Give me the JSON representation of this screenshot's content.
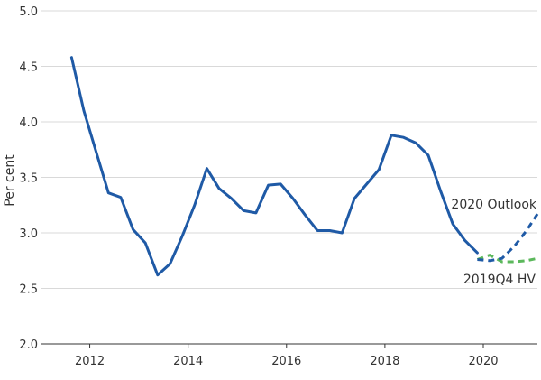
{
  "chart_data": {
    "type": "line",
    "title": "",
    "xlabel": "",
    "ylabel": "Per cent",
    "xlim": [
      2011.0,
      2021.1
    ],
    "ylim": [
      2.0,
      5.0
    ],
    "x_ticks": [
      2012,
      2014,
      2016,
      2018,
      2020
    ],
    "y_ticks": [
      "2.0",
      "2.5",
      "3.0",
      "3.5",
      "4.0",
      "4.5",
      "5.0"
    ],
    "grid": "horizontal",
    "legend": "none",
    "series": [
      {
        "name": "",
        "color": "#1f5aa6",
        "style": "solid",
        "x": [
          2011.63,
          2011.88,
          2012.13,
          2012.38,
          2012.63,
          2012.88,
          2013.13,
          2013.38,
          2013.63,
          2013.88,
          2014.13,
          2014.38,
          2014.63,
          2014.88,
          2015.13,
          2015.38,
          2015.63,
          2015.88,
          2016.13,
          2016.38,
          2016.63,
          2016.88,
          2017.13,
          2017.38,
          2017.63,
          2017.88,
          2018.13,
          2018.38,
          2018.63,
          2018.88,
          2019.13,
          2019.38,
          2019.63,
          2019.88
        ],
        "values": [
          4.58,
          4.1,
          3.73,
          3.36,
          3.32,
          3.03,
          2.91,
          2.62,
          2.72,
          2.97,
          3.25,
          3.58,
          3.4,
          3.31,
          3.2,
          3.18,
          3.43,
          3.44,
          3.31,
          3.16,
          3.02,
          3.02,
          3.0,
          3.31,
          3.44,
          3.57,
          3.88,
          3.86,
          3.81,
          3.7,
          3.38,
          3.08,
          2.93,
          2.82
        ]
      },
      {
        "name": "2020 Outlook",
        "color": "#1f5aa6",
        "style": "dashed",
        "x": [
          2019.88,
          2020.13,
          2020.38,
          2020.63,
          2020.88,
          2021.1
        ],
        "values": [
          2.76,
          2.75,
          2.77,
          2.88,
          3.02,
          3.17
        ]
      },
      {
        "name": "2019Q4 HV",
        "color": "#5cb85c",
        "style": "dashed",
        "x": [
          2019.88,
          2020.13,
          2020.38,
          2020.63,
          2020.88,
          2021.1
        ],
        "values": [
          2.76,
          2.8,
          2.74,
          2.74,
          2.75,
          2.77
        ]
      }
    ],
    "annotations": [
      "2020 Outlook",
      "2019Q4 HV"
    ]
  }
}
